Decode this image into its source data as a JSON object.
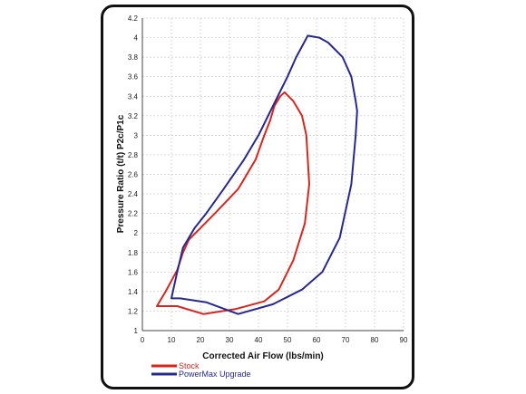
{
  "chart_data": {
    "type": "line",
    "title": "",
    "xlabel": "Corrected Air Flow (lbs/min)",
    "ylabel": "Pressure Ratio (t/t) P2c/P1c",
    "xlim": [
      0,
      90
    ],
    "ylim": [
      1,
      4.2
    ],
    "x_ticks": [
      "0",
      "10",
      "20",
      "30",
      "40",
      "50",
      "60",
      "70",
      "80",
      "90"
    ],
    "y_ticks": [
      "1",
      "1.2",
      "1.4",
      "1.6",
      "1.8",
      "2",
      "2.2",
      "2.4",
      "2.6",
      "2.8",
      "3",
      "3.2",
      "3.4",
      "3.6",
      "3.8",
      "4",
      "4.2"
    ],
    "grid": "dashed",
    "legend_position": "bottom-left",
    "series": [
      {
        "name": "Stock",
        "color": "#d7261e",
        "x": [
          5,
          12,
          21,
          32,
          42,
          47,
          52,
          56,
          57.5,
          57,
          56.5,
          55,
          52,
          49,
          47.5,
          45.5,
          44,
          42,
          39,
          33,
          25,
          20,
          16,
          14,
          12,
          8,
          5
        ],
        "y": [
          1.25,
          1.25,
          1.17,
          1.22,
          1.3,
          1.42,
          1.72,
          2.1,
          2.5,
          2.75,
          3.0,
          3.2,
          3.35,
          3.44,
          3.4,
          3.3,
          3.15,
          3.0,
          2.75,
          2.45,
          2.2,
          2.05,
          1.93,
          1.8,
          1.62,
          1.4,
          1.25
        ]
      },
      {
        "name": "PowerMax Upgrade",
        "color": "#27288f",
        "x": [
          10,
          13,
          22,
          33,
          45,
          55,
          62,
          68,
          72,
          73.5,
          74,
          73.5,
          72,
          69,
          64,
          61,
          57,
          53,
          50,
          45,
          40,
          35,
          28,
          22,
          18,
          14,
          12,
          10
        ],
        "y": [
          1.33,
          1.33,
          1.29,
          1.17,
          1.27,
          1.42,
          1.6,
          1.95,
          2.5,
          3.0,
          3.25,
          3.35,
          3.6,
          3.8,
          3.95,
          4.0,
          4.02,
          3.8,
          3.6,
          3.3,
          3.0,
          2.75,
          2.45,
          2.2,
          2.05,
          1.85,
          1.6,
          1.33
        ]
      }
    ]
  }
}
